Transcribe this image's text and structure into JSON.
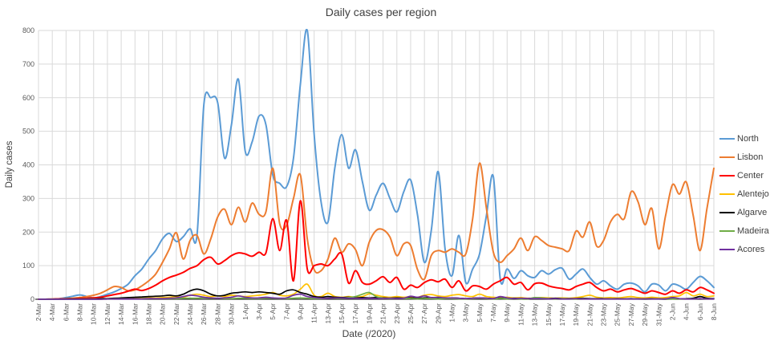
{
  "title": "Daily cases per region",
  "axes": {
    "x_title": "Date (/2020)",
    "y_title": "Daily cases",
    "y_ticks": [
      0,
      100,
      200,
      300,
      400,
      500,
      600,
      700,
      800
    ],
    "x_tick_every": 2
  },
  "colors": {
    "grid": "#d9d9d9",
    "axis_line": "#333333",
    "tick_text": "#595959",
    "title_text": "#404040"
  },
  "chart_data": {
    "type": "line",
    "title": "Daily cases per region",
    "xlabel": "Date (/2020)",
    "ylabel": "Daily cases",
    "ylim": [
      0,
      800
    ],
    "grid": true,
    "legend_position": "right",
    "smooth": true,
    "x": [
      "2-Mar",
      "3-Mar",
      "4-Mar",
      "5-Mar",
      "6-Mar",
      "7-Mar",
      "8-Mar",
      "9-Mar",
      "10-Mar",
      "11-Mar",
      "12-Mar",
      "13-Mar",
      "14-Mar",
      "15-Mar",
      "16-Mar",
      "17-Mar",
      "18-Mar",
      "19-Mar",
      "20-Mar",
      "21-Mar",
      "22-Mar",
      "23-Mar",
      "24-Mar",
      "25-Mar",
      "26-Mar",
      "27-Mar",
      "28-Mar",
      "29-Mar",
      "30-Mar",
      "31-Mar",
      "1-Apr",
      "2-Apr",
      "3-Apr",
      "4-Apr",
      "5-Apr",
      "6-Apr",
      "7-Apr",
      "8-Apr",
      "9-Apr",
      "10-Apr",
      "11-Apr",
      "12-Apr",
      "13-Apr",
      "14-Apr",
      "15-Apr",
      "16-Apr",
      "17-Apr",
      "18-Apr",
      "19-Apr",
      "20-Apr",
      "21-Apr",
      "22-Apr",
      "23-Apr",
      "24-Apr",
      "25-Apr",
      "26-Apr",
      "27-Apr",
      "28-Apr",
      "29-Apr",
      "30-Apr",
      "1-May",
      "2-May",
      "3-May",
      "4-May",
      "5-May",
      "6-May",
      "7-May",
      "8-May",
      "9-May",
      "10-May",
      "11-May",
      "12-May",
      "13-May",
      "14-May",
      "15-May",
      "16-May",
      "17-May",
      "18-May",
      "19-May",
      "20-May",
      "21-May",
      "22-May",
      "23-May",
      "24-May",
      "25-May",
      "26-May",
      "27-May",
      "28-May",
      "29-May",
      "30-May",
      "31-May",
      "1-Jun",
      "2-Jun",
      "3-Jun",
      "4-Jun",
      "5-Jun",
      "6-Jun",
      "7-Jun",
      "8-Jun"
    ],
    "series": [
      {
        "name": "North",
        "color": "#5B9BD5",
        "width": 2,
        "values": [
          0,
          0,
          1,
          2,
          5,
          9,
          13,
          8,
          4,
          8,
          15,
          22,
          32,
          45,
          70,
          90,
          120,
          145,
          180,
          196,
          172,
          186,
          210,
          190,
          580,
          600,
          585,
          420,
          520,
          655,
          440,
          468,
          545,
          520,
          370,
          345,
          335,
          420,
          640,
          800,
          490,
          290,
          230,
          390,
          490,
          390,
          445,
          350,
          265,
          310,
          345,
          300,
          260,
          320,
          355,
          250,
          110,
          205,
          380,
          150,
          70,
          190,
          50,
          90,
          135,
          250,
          365,
          60,
          90,
          62,
          85,
          70,
          65,
          85,
          75,
          88,
          92,
          60,
          75,
          90,
          65,
          45,
          55,
          40,
          30,
          45,
          48,
          40,
          22,
          45,
          42,
          25,
          45,
          40,
          30,
          50,
          68,
          55,
          35
        ]
      },
      {
        "name": "Lisbon",
        "color": "#ED7D31",
        "width": 2,
        "values": [
          0,
          0,
          1,
          1,
          2,
          3,
          5,
          8,
          12,
          18,
          28,
          38,
          35,
          25,
          28,
          40,
          55,
          75,
          110,
          150,
          198,
          120,
          175,
          190,
          135,
          180,
          245,
          268,
          222,
          274,
          230,
          286,
          253,
          260,
          390,
          225,
          220,
          300,
          370,
          180,
          88,
          85,
          120,
          182,
          140,
          165,
          148,
          100,
          170,
          205,
          207,
          185,
          130,
          165,
          160,
          88,
          60,
          130,
          145,
          140,
          150,
          140,
          135,
          240,
          405,
          270,
          140,
          110,
          130,
          150,
          182,
          145,
          186,
          175,
          160,
          155,
          150,
          145,
          203,
          185,
          230,
          158,
          175,
          230,
          253,
          240,
          320,
          290,
          222,
          270,
          150,
          250,
          341,
          313,
          349,
          250,
          145,
          270,
          390
        ]
      },
      {
        "name": "Center",
        "color": "#FF0000",
        "width": 2,
        "values": [
          0,
          0,
          0,
          1,
          1,
          2,
          3,
          3,
          4,
          6,
          10,
          14,
          18,
          24,
          30,
          26,
          32,
          42,
          55,
          65,
          72,
          80,
          92,
          100,
          118,
          125,
          105,
          115,
          130,
          138,
          135,
          128,
          140,
          138,
          240,
          145,
          235,
          55,
          293,
          90,
          100,
          105,
          100,
          120,
          135,
          48,
          85,
          50,
          45,
          55,
          67,
          50,
          65,
          30,
          42,
          35,
          50,
          58,
          52,
          60,
          35,
          55,
          25,
          40,
          38,
          30,
          45,
          55,
          65,
          45,
          50,
          28,
          46,
          48,
          40,
          35,
          32,
          28,
          38,
          45,
          50,
          35,
          25,
          30,
          22,
          28,
          32,
          25,
          18,
          25,
          20,
          15,
          25,
          18,
          28,
          22,
          35,
          28,
          18
        ]
      },
      {
        "name": "Alentejo",
        "color": "#FFC000",
        "width": 1.7,
        "values": [
          0,
          0,
          0,
          0,
          0,
          1,
          1,
          1,
          1,
          2,
          2,
          3,
          3,
          2,
          3,
          3,
          4,
          4,
          5,
          6,
          8,
          6,
          12,
          15,
          12,
          8,
          10,
          8,
          12,
          10,
          8,
          10,
          12,
          15,
          20,
          12,
          10,
          15,
          30,
          45,
          12,
          8,
          18,
          8,
          6,
          8,
          6,
          8,
          16,
          12,
          8,
          6,
          8,
          6,
          8,
          6,
          12,
          14,
          10,
          8,
          12,
          14,
          10,
          8,
          15,
          8,
          6,
          4,
          6,
          4,
          5,
          3,
          4,
          5,
          4,
          3,
          4,
          3,
          5,
          8,
          12,
          6,
          4,
          5,
          4,
          6,
          8,
          5,
          4,
          6,
          4,
          5,
          8,
          10,
          20,
          10,
          15,
          8,
          10
        ]
      },
      {
        "name": "Algarve",
        "color": "#000000",
        "width": 1.7,
        "values": [
          0,
          0,
          0,
          0,
          1,
          1,
          1,
          1,
          1,
          2,
          2,
          3,
          4,
          5,
          6,
          7,
          8,
          9,
          10,
          12,
          10,
          15,
          25,
          30,
          25,
          15,
          10,
          12,
          18,
          20,
          22,
          20,
          22,
          20,
          18,
          15,
          25,
          28,
          20,
          15,
          8,
          6,
          8,
          6,
          5,
          6,
          4,
          5,
          4,
          5,
          4,
          3,
          4,
          3,
          4,
          3,
          4,
          5,
          4,
          3,
          4,
          3,
          2,
          3,
          4,
          3,
          2,
          3,
          2,
          3,
          2,
          2,
          3,
          2,
          2,
          3,
          2,
          2,
          2,
          3,
          2,
          2,
          2,
          1,
          2,
          1,
          2,
          1,
          1,
          2,
          1,
          1,
          2,
          1,
          2,
          3,
          8,
          3,
          2
        ]
      },
      {
        "name": "Madeira",
        "color": "#70AD47",
        "width": 1.7,
        "values": [
          0,
          0,
          0,
          0,
          0,
          0,
          0,
          0,
          0,
          0,
          1,
          1,
          1,
          1,
          1,
          2,
          2,
          2,
          2,
          2,
          2,
          3,
          3,
          3,
          4,
          3,
          3,
          2,
          2,
          3,
          3,
          2,
          2,
          3,
          3,
          2,
          2,
          3,
          4,
          3,
          2,
          2,
          3,
          3,
          3,
          5,
          8,
          15,
          20,
          8,
          3,
          2,
          2,
          2,
          2,
          1,
          2,
          2,
          1,
          2,
          2,
          1,
          1,
          2,
          3,
          2,
          1,
          2,
          1,
          2,
          1,
          1,
          5,
          4,
          2,
          1,
          2,
          1,
          1,
          2,
          1,
          1,
          1,
          1,
          1,
          1,
          1,
          1,
          0,
          1,
          1,
          0,
          1,
          1,
          1,
          1,
          2,
          1,
          1
        ]
      },
      {
        "name": "Acores",
        "color": "#7030A0",
        "width": 1.7,
        "values": [
          0,
          0,
          0,
          0,
          0,
          0,
          0,
          0,
          0,
          0,
          1,
          1,
          1,
          1,
          1,
          1,
          2,
          2,
          2,
          3,
          4,
          8,
          12,
          10,
          6,
          4,
          3,
          4,
          6,
          10,
          6,
          4,
          4,
          6,
          4,
          3,
          4,
          12,
          15,
          8,
          5,
          3,
          3,
          4,
          4,
          3,
          3,
          2,
          3,
          2,
          2,
          3,
          2,
          3,
          9,
          6,
          10,
          5,
          6,
          4,
          4,
          3,
          2,
          3,
          4,
          3,
          2,
          8,
          4,
          2,
          3,
          2,
          2,
          2,
          1,
          2,
          1,
          1,
          2,
          1,
          1,
          1,
          1,
          1,
          1,
          1,
          1,
          1,
          1,
          1,
          1,
          1,
          5,
          2,
          1,
          1,
          2,
          1,
          1
        ]
      }
    ]
  }
}
